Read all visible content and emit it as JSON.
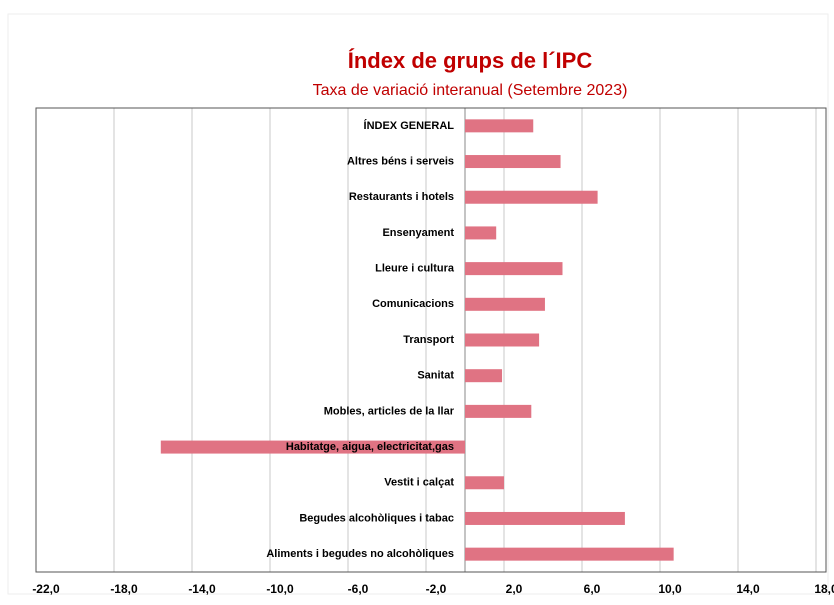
{
  "chart_data": {
    "type": "barh",
    "title": "Índex de grups de l´IPC",
    "subtitle": "Taxa de variació interanual (Setembre 2023)",
    "categories": [
      "ÍNDEX GENERAL",
      "Altres béns i serveis",
      "Restaurants i hotels",
      "Ensenyament",
      "Lleure i cultura",
      "Comunicacions",
      "Transport",
      "Sanitat",
      "Mobles, articles de la llar",
      "Habitatge, aigua, electricitat,gas",
      "Vestit i calçat",
      "Begudes alcohòliques i tabac",
      "Aliments i begudes no alcohòliques"
    ],
    "values": [
      3.5,
      4.9,
      6.8,
      1.6,
      5.0,
      4.1,
      3.8,
      1.9,
      3.4,
      -15.6,
      2.0,
      8.2,
      10.7
    ],
    "color": "#e07383",
    "xlim": [
      -22,
      18
    ],
    "xticks": [
      {
        "value": -22,
        "label": "-22,0"
      },
      {
        "value": -18,
        "label": "-18,0"
      },
      {
        "value": -14,
        "label": "-14,0"
      },
      {
        "value": -10,
        "label": "-10,0"
      },
      {
        "value": -6,
        "label": "-6,0"
      },
      {
        "value": -2,
        "label": "-2,0"
      },
      {
        "value": 2,
        "label": "2,0"
      },
      {
        "value": 6,
        "label": "6,0"
      },
      {
        "value": 10,
        "label": "10,0"
      },
      {
        "value": 14,
        "label": "14,0"
      },
      {
        "value": 18,
        "label": "18,0"
      }
    ],
    "grid": true
  }
}
